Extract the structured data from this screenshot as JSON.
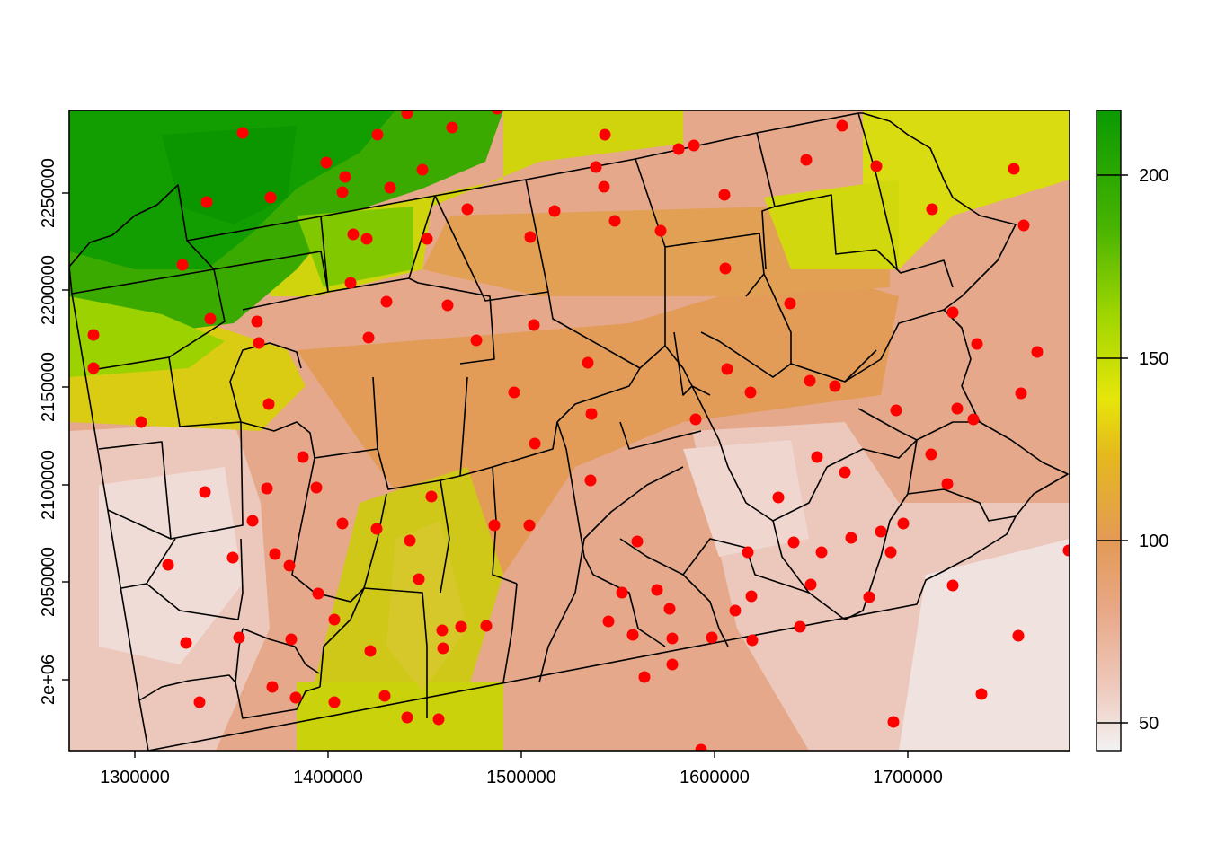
{
  "map": {
    "x_axis": {
      "ticks": [
        "1300000",
        "1400000",
        "1500000",
        "1600000",
        "1700000"
      ]
    },
    "y_axis": {
      "ticks": [
        "2e+06",
        "2050000",
        "2100000",
        "2150000",
        "2200000",
        "2250000"
      ]
    },
    "legend": {
      "ticks": [
        "50",
        "100",
        "150",
        "200"
      ],
      "range": [
        43,
        218
      ],
      "colors": [
        "#f2f2f2",
        "#eec9bc",
        "#e8a887",
        "#e39a55",
        "#e5b81e",
        "#e6e60a",
        "#a0d600",
        "#47b300",
        "#0a9a00"
      ]
    },
    "station_color": "#ff0000",
    "station_count": 140
  }
}
